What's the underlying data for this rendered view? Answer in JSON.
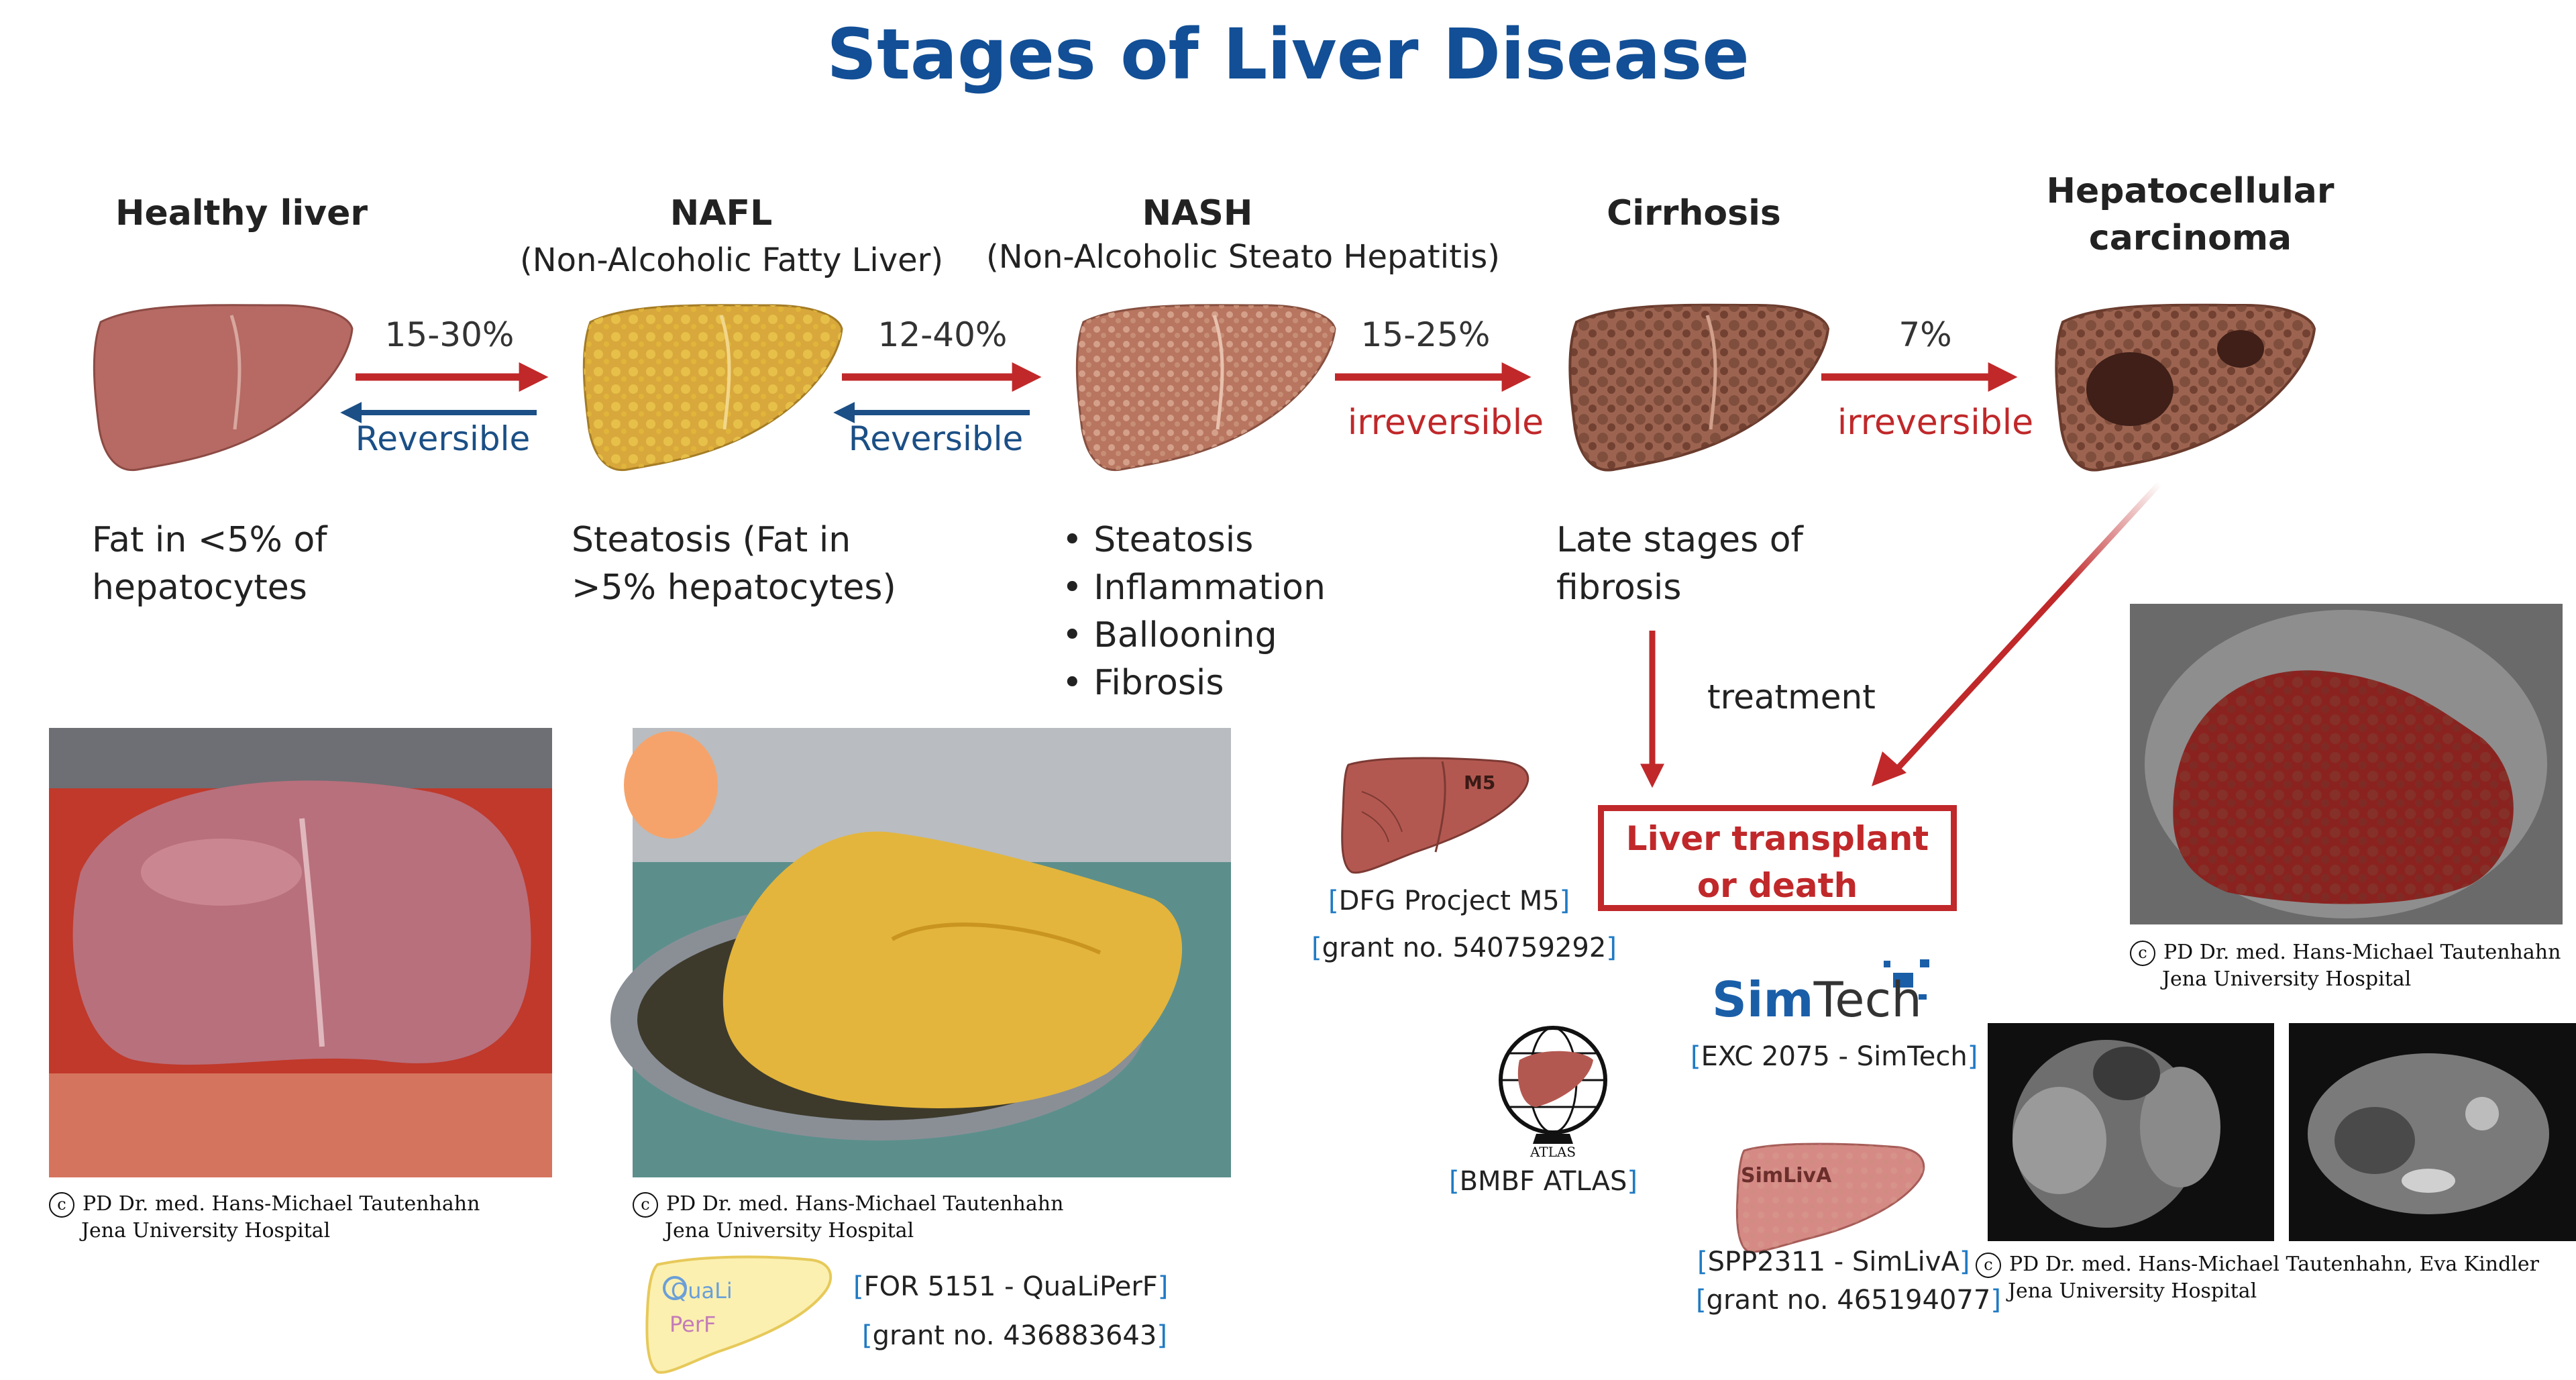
{
  "title": "Stages of Liver Disease",
  "colors": {
    "title": "#124f96",
    "forward_arrow": "#c0282a",
    "reverse_arrow": "#1b4f86",
    "irreversible": "#c0282a"
  },
  "stages": [
    {
      "title": "Healthy liver",
      "subtitle": "",
      "description": [
        "Fat in <5% of",
        "hepatocytes"
      ]
    },
    {
      "title": "NAFL",
      "subtitle": "(Non-Alcoholic Fatty Liver)",
      "description": [
        "Steatosis (Fat in",
        ">5% hepatocytes)"
      ]
    },
    {
      "title": "NASH",
      "subtitle": "(Non-Alcoholic Steato Hepatitis)",
      "description": [
        "Steatosis",
        "Inflammation",
        "Ballooning",
        "Fibrosis"
      ]
    },
    {
      "title": "Cirrhosis",
      "subtitle": "",
      "description": [
        "Late stages of",
        "fibrosis"
      ]
    },
    {
      "title": "Hepatocellular",
      "title2": "carcinoma",
      "subtitle": "",
      "description": []
    }
  ],
  "transitions": [
    {
      "percent": "15-30%",
      "note": "Reversible"
    },
    {
      "percent": "12-40%",
      "note": "Reversible"
    },
    {
      "percent": "15-25%",
      "note": "irreversible"
    },
    {
      "percent": "7%",
      "note": "irreversible"
    }
  ],
  "treatment_label": "treatment",
  "outcome_box": {
    "line1": "Liver transplant",
    "line2": "or death"
  },
  "credits": {
    "photo1": {
      "line1": "PD Dr. med. Hans-Michael Tautenhahn",
      "line2": "Jena University Hospital"
    },
    "photo2": {
      "line1": "PD Dr. med. Hans-Michael Tautenhahn",
      "line2": "Jena University Hospital"
    },
    "photo3": {
      "line1": "PD Dr. med. Hans-Michael Tautenhahn",
      "line2": "Jena University Hospital"
    },
    "mri": {
      "line1": "PD Dr. med. Hans-Michael Tautenhahn, Eva Kindler",
      "line2": "Jena University Hospital"
    }
  },
  "credit_symbol": "c",
  "grants": {
    "qualiperf": {
      "line1": "FOR 5151 - QuaLiPerF",
      "line2": "grant no. 436883643",
      "logo_text1": "QuaLi",
      "logo_text2": "PerF"
    },
    "m5": {
      "line1": "DFG Procject M5",
      "line2": "grant no. 540759292",
      "logo_text": "M5"
    },
    "atlas": {
      "line1": "BMBF ATLAS",
      "logo_text": "ATLAS"
    },
    "simtech": {
      "line1": "EXC 2075 - SimTech",
      "logo_bold": "Sim",
      "logo_light": "Tech"
    },
    "simliva": {
      "line1": "SPP2311 - SimLivA",
      "line2": "grant no. 465194077",
      "logo_text": "SimLivA"
    }
  }
}
